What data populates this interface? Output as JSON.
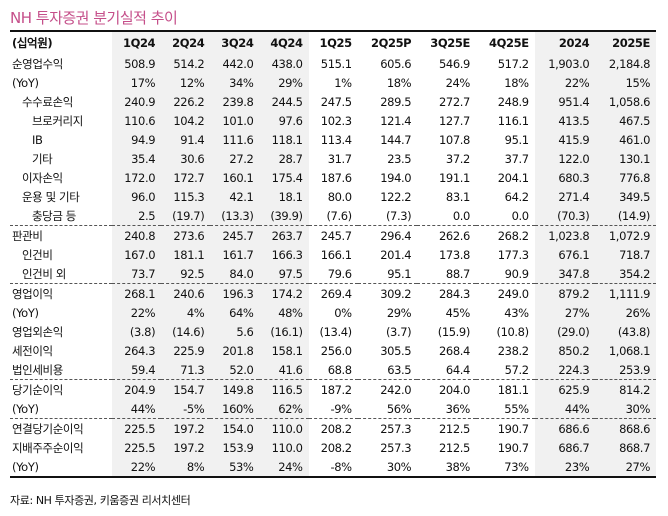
{
  "title": "NH 투자증권 분기실적 추이",
  "header": [
    "(십억원)",
    "1Q24",
    "2Q24",
    "3Q24",
    "4Q24",
    "1Q25",
    "2Q25P",
    "3Q25E",
    "4Q25E",
    "2024",
    "2025E"
  ],
  "rows": [
    {
      "label": "순영업수익",
      "indent": 0,
      "values": [
        "508.9",
        "514.2",
        "442.0",
        "438.0",
        "515.1",
        "605.6",
        "546.9",
        "517.2",
        "1,903.0",
        "2,184.8"
      ]
    },
    {
      "label": "(YoY)",
      "indent": 0,
      "values": [
        "17%",
        "12%",
        "34%",
        "29%",
        "1%",
        "18%",
        "24%",
        "18%",
        "22%",
        "15%"
      ]
    },
    {
      "label": "수수료손익",
      "indent": 1,
      "values": [
        "240.9",
        "226.2",
        "239.8",
        "244.5",
        "247.5",
        "289.5",
        "272.7",
        "248.9",
        "951.4",
        "1,058.6"
      ]
    },
    {
      "label": "브로커리지",
      "indent": 2,
      "values": [
        "110.6",
        "104.2",
        "101.0",
        "97.6",
        "102.3",
        "121.4",
        "127.7",
        "116.1",
        "413.5",
        "467.5"
      ]
    },
    {
      "label": "IB",
      "indent": 2,
      "values": [
        "94.9",
        "91.4",
        "111.6",
        "118.1",
        "113.4",
        "144.7",
        "107.8",
        "95.1",
        "415.9",
        "461.0"
      ]
    },
    {
      "label": "기타",
      "indent": 2,
      "values": [
        "35.4",
        "30.6",
        "27.2",
        "28.7",
        "31.7",
        "23.5",
        "37.2",
        "37.7",
        "122.0",
        "130.1"
      ]
    },
    {
      "label": "이자손익",
      "indent": 1,
      "values": [
        "172.0",
        "172.7",
        "160.1",
        "175.4",
        "187.6",
        "194.0",
        "191.1",
        "204.1",
        "680.3",
        "776.8"
      ]
    },
    {
      "label": "운용 및 기타",
      "indent": 1,
      "values": [
        "96.0",
        "115.3",
        "42.1",
        "18.1",
        "80.0",
        "122.2",
        "83.1",
        "64.2",
        "271.4",
        "349.5"
      ]
    },
    {
      "label": "충당금 등",
      "indent": 2,
      "sep": true,
      "values": [
        "2.5",
        "(19.7)",
        "(13.3)",
        "(39.9)",
        "(7.6)",
        "(7.3)",
        "0.0",
        "0.0",
        "(70.3)",
        "(14.9)"
      ]
    },
    {
      "label": "판관비",
      "indent": 0,
      "values": [
        "240.8",
        "273.6",
        "245.7",
        "263.7",
        "245.7",
        "296.4",
        "262.6",
        "268.2",
        "1,023.8",
        "1,072.9"
      ]
    },
    {
      "label": "인건비",
      "indent": 1,
      "values": [
        "167.0",
        "181.1",
        "161.7",
        "166.3",
        "166.1",
        "201.4",
        "173.8",
        "177.3",
        "676.1",
        "718.7"
      ]
    },
    {
      "label": "인건비 외",
      "indent": 1,
      "sep": true,
      "values": [
        "73.7",
        "92.5",
        "84.0",
        "97.5",
        "79.6",
        "95.1",
        "88.7",
        "90.9",
        "347.8",
        "354.2"
      ]
    },
    {
      "label": "영업이익",
      "indent": 0,
      "values": [
        "268.1",
        "240.6",
        "196.3",
        "174.2",
        "269.4",
        "309.2",
        "284.3",
        "249.0",
        "879.2",
        "1,111.9"
      ]
    },
    {
      "label": "(YoY)",
      "indent": 0,
      "values": [
        "22%",
        "4%",
        "64%",
        "48%",
        "0%",
        "29%",
        "45%",
        "43%",
        "27%",
        "26%"
      ]
    },
    {
      "label": "영업외손익",
      "indent": 0,
      "values": [
        "(3.8)",
        "(14.6)",
        "5.6",
        "(16.1)",
        "(13.4)",
        "(3.7)",
        "(15.9)",
        "(10.8)",
        "(29.0)",
        "(43.8)"
      ]
    },
    {
      "label": "세전이익",
      "indent": 0,
      "values": [
        "264.3",
        "225.9",
        "201.8",
        "158.1",
        "256.0",
        "305.5",
        "268.4",
        "238.2",
        "850.2",
        "1,068.1"
      ]
    },
    {
      "label": "법인세비용",
      "indent": 0,
      "sep": true,
      "values": [
        "59.4",
        "71.3",
        "52.0",
        "41.6",
        "68.8",
        "63.5",
        "64.4",
        "57.2",
        "224.3",
        "253.9"
      ]
    },
    {
      "label": "당기순이익",
      "indent": 0,
      "values": [
        "204.9",
        "154.7",
        "149.8",
        "116.5",
        "187.2",
        "242.0",
        "204.0",
        "181.1",
        "625.9",
        "814.2"
      ]
    },
    {
      "label": "(YoY)",
      "indent": 0,
      "sep": true,
      "values": [
        "44%",
        "-5%",
        "160%",
        "62%",
        "-9%",
        "56%",
        "36%",
        "55%",
        "44%",
        "30%"
      ]
    },
    {
      "label": "연결당기순이익",
      "indent": 0,
      "values": [
        "225.5",
        "197.2",
        "154.0",
        "110.0",
        "208.2",
        "257.3",
        "212.5",
        "190.7",
        "686.6",
        "868.6"
      ]
    },
    {
      "label": "지배주주순이익",
      "indent": 0,
      "values": [
        "225.5",
        "197.2",
        "153.9",
        "110.0",
        "208.2",
        "257.3",
        "212.5",
        "190.7",
        "686.7",
        "868.7"
      ]
    },
    {
      "label": "(YoY)",
      "indent": 0,
      "last": true,
      "values": [
        "22%",
        "8%",
        "53%",
        "24%",
        "-8%",
        "30%",
        "38%",
        "73%",
        "23%",
        "27%"
      ]
    }
  ],
  "source": "자료: NH 투자증권, 키움증권 리서치센터"
}
